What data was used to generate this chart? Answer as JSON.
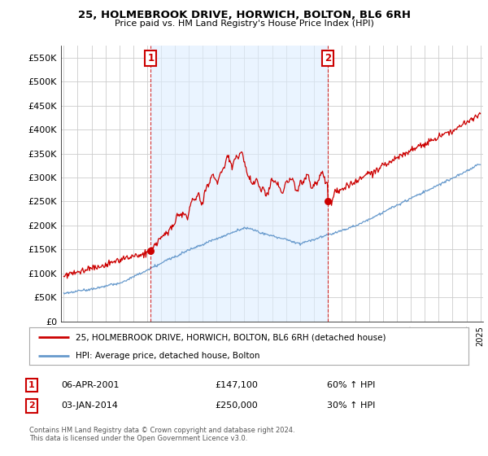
{
  "title": "25, HOLMEBROOK DRIVE, HORWICH, BOLTON, BL6 6RH",
  "subtitle": "Price paid vs. HM Land Registry's House Price Index (HPI)",
  "legend_line1": "25, HOLMEBROOK DRIVE, HORWICH, BOLTON, BL6 6RH (detached house)",
  "legend_line2": "HPI: Average price, detached house, Bolton",
  "table_rows": [
    {
      "num": "1",
      "date": "06-APR-2001",
      "price": "£147,100",
      "change": "60% ↑ HPI"
    },
    {
      "num": "2",
      "date": "03-JAN-2014",
      "price": "£250,000",
      "change": "30% ↑ HPI"
    }
  ],
  "footnote": "Contains HM Land Registry data © Crown copyright and database right 2024.\nThis data is licensed under the Open Government Licence v3.0.",
  "line_color_red": "#cc0000",
  "line_color_blue": "#6699cc",
  "shade_color": "#ddeeff",
  "annotation_box_color": "#cc0000",
  "background_color": "#ffffff",
  "grid_color": "#cccccc",
  "ylim": [
    0,
    575000
  ],
  "yticks": [
    0,
    50000,
    100000,
    150000,
    200000,
    250000,
    300000,
    350000,
    400000,
    450000,
    500000,
    550000
  ],
  "x_start_year": 1995,
  "x_end_year": 2025,
  "purchase1_year": 2001.27,
  "purchase1_price": 147100,
  "purchase2_year": 2014.01,
  "purchase2_price": 250000
}
